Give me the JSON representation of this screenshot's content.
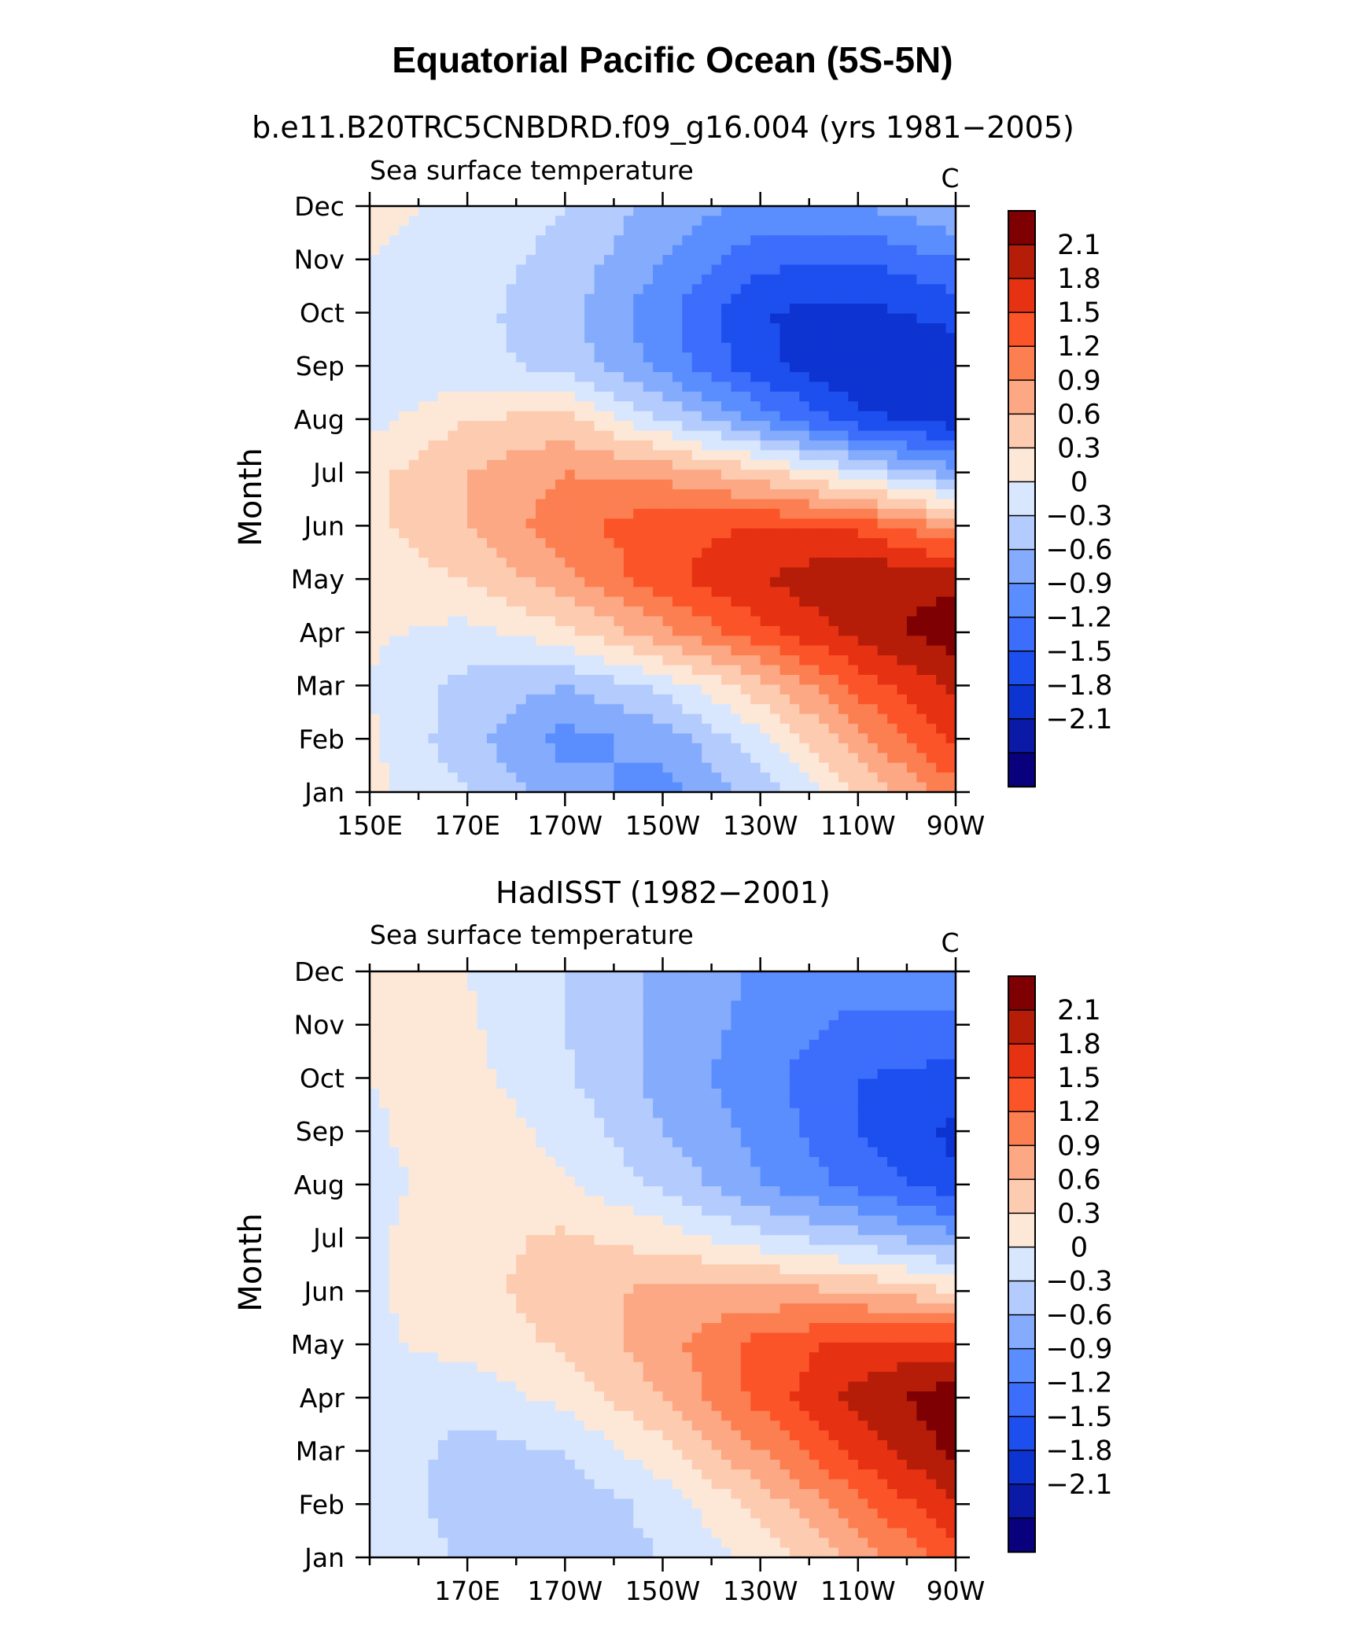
{
  "main_title": "Equatorial Pacific Ocean (5S-5N)",
  "colors": [
    "#08007d",
    "#0a1aa6",
    "#0d33d1",
    "#1d4fef",
    "#3d6dfb",
    "#5a8efe",
    "#85abfd",
    "#b3cbfd",
    "#d8e7fd",
    "#fde8d8",
    "#fdcbb0",
    "#fca884",
    "#fc7f52",
    "#fc5429",
    "#e63112",
    "#b51d09",
    "#7e0003"
  ],
  "chart_data": [
    {
      "type": "heatmap",
      "title": "b.e11.B20TRC5CNBDRD.f09_g16.004 (yrs 1981−2005)",
      "left_string": "Sea surface temperature",
      "right_string": "C",
      "ylabel": "Month",
      "x_tick_labels": [
        "150E",
        "170E",
        "170W",
        "150W",
        "130W",
        "110W",
        "90W"
      ],
      "x_tick_lon": [
        150,
        170,
        190,
        210,
        230,
        250,
        270
      ],
      "y_tick_labels": [
        "Jan",
        "Feb",
        "Mar",
        "Apr",
        "May",
        "Jun",
        "Jul",
        "Aug",
        "Sep",
        "Oct",
        "Nov",
        "Dec"
      ],
      "xlim": [
        150,
        270
      ],
      "colorbar_levels": [
        "2.1",
        "1.8",
        "1.5",
        "1.2",
        "0.9",
        "0.6",
        "0.3",
        "0",
        "−0.3",
        "−0.6",
        "−0.9",
        "−1.2",
        "−1.5",
        "−1.8",
        "−2.1"
      ],
      "x": [
        150,
        170,
        190,
        210,
        230,
        250,
        270
      ],
      "values": [
        [
          0.1,
          -0.3,
          -0.8,
          -1.0,
          -0.5,
          0.3,
          1.1
        ],
        [
          0.05,
          -0.5,
          -1.0,
          -0.8,
          -0.1,
          0.8,
          1.6
        ],
        [
          0.0,
          -0.4,
          -0.6,
          -0.2,
          0.5,
          1.3,
          1.9
        ],
        [
          0.05,
          -0.1,
          0.2,
          0.8,
          1.4,
          1.9,
          2.3
        ],
        [
          0.15,
          0.3,
          0.8,
          1.4,
          1.8,
          2.1,
          2.0
        ],
        [
          0.2,
          0.6,
          1.1,
          1.4,
          1.5,
          1.4,
          0.8
        ],
        [
          0.2,
          0.6,
          0.9,
          0.8,
          0.4,
          -0.2,
          -0.8
        ],
        [
          -0.1,
          0.3,
          0.4,
          -0.3,
          -1.0,
          -1.7,
          -2.0
        ],
        [
          -0.3,
          -0.2,
          -0.4,
          -1.0,
          -1.7,
          -2.1,
          -2.0
        ],
        [
          -0.2,
          -0.2,
          -0.5,
          -1.1,
          -1.8,
          -1.9,
          -1.7
        ],
        [
          0.0,
          -0.15,
          -0.4,
          -0.9,
          -1.4,
          -1.5,
          -1.2
        ],
        [
          0.1,
          -0.1,
          -0.3,
          -0.7,
          -1.0,
          -0.9,
          -0.6
        ]
      ]
    },
    {
      "type": "heatmap",
      "title": "HadISST (1982−2001)",
      "left_string": "Sea surface temperature",
      "right_string": "C",
      "ylabel": "Month",
      "x_tick_labels": [
        "170E",
        "170W",
        "150W",
        "130W",
        "110W",
        "90W"
      ],
      "x_tick_lon": [
        170,
        190,
        210,
        230,
        250,
        270
      ],
      "y_tick_labels": [
        "Jan",
        "Feb",
        "Mar",
        "Apr",
        "May",
        "Jun",
        "Jul",
        "Aug",
        "Sep",
        "Oct",
        "Nov",
        "Dec"
      ],
      "xlim": [
        150,
        270
      ],
      "colorbar_levels": [
        "2.1",
        "1.8",
        "1.5",
        "1.2",
        "0.9",
        "0.6",
        "0.3",
        "0",
        "−0.3",
        "−0.6",
        "−0.9",
        "−1.2",
        "−1.5",
        "−1.8",
        "−2.1"
      ],
      "x": [
        150,
        170,
        190,
        210,
        230,
        250,
        270
      ],
      "values": [
        [
          -0.05,
          -0.35,
          -0.45,
          -0.3,
          0.1,
          0.7,
          1.4
        ],
        [
          -0.1,
          -0.45,
          -0.5,
          -0.2,
          0.4,
          1.1,
          1.8
        ],
        [
          -0.1,
          -0.4,
          -0.3,
          0.2,
          0.9,
          1.6,
          2.2
        ],
        [
          -0.1,
          -0.2,
          0.1,
          0.6,
          1.3,
          1.9,
          2.3
        ],
        [
          -0.05,
          0.1,
          0.35,
          0.8,
          1.3,
          1.6,
          1.6
        ],
        [
          -0.05,
          0.2,
          0.45,
          0.7,
          0.7,
          0.6,
          0.3
        ],
        [
          -0.05,
          0.2,
          0.35,
          0.15,
          -0.2,
          -0.5,
          -0.8
        ],
        [
          -0.1,
          0.15,
          0.05,
          -0.35,
          -0.9,
          -1.3,
          -1.7
        ],
        [
          -0.05,
          0.2,
          -0.1,
          -0.6,
          -1.0,
          -1.5,
          -1.9
        ],
        [
          0.0,
          0.1,
          -0.25,
          -0.7,
          -1.1,
          -1.5,
          -1.6
        ],
        [
          0.05,
          0.05,
          -0.3,
          -0.7,
          -1.0,
          -1.3,
          -1.3
        ],
        [
          0.05,
          0.0,
          -0.3,
          -0.65,
          -0.95,
          -1.0,
          -0.9
        ]
      ]
    }
  ]
}
